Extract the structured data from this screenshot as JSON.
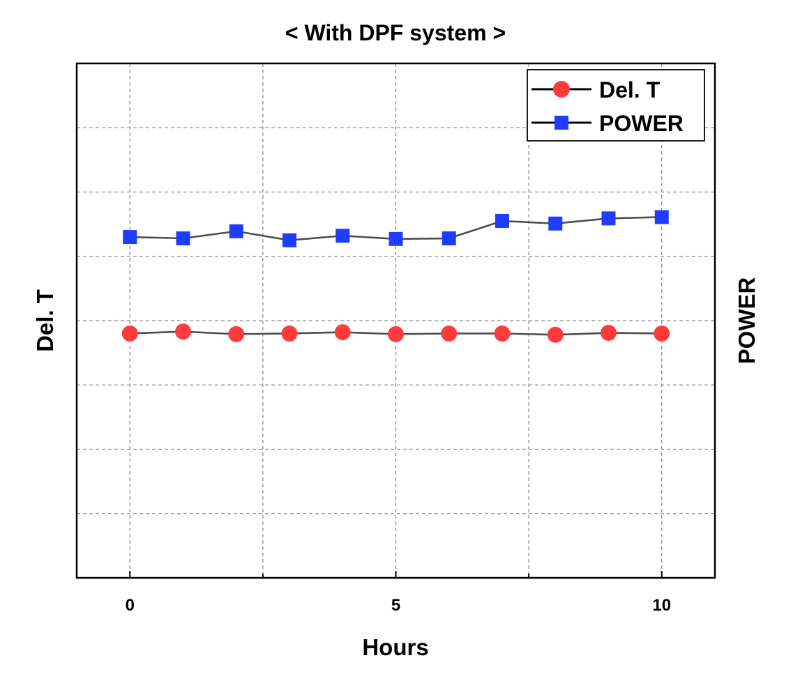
{
  "chart_data": {
    "type": "line",
    "title": "< With DPF system >",
    "xlabel": "Hours",
    "ylabel_left": "Del. T",
    "ylabel_right": "POWER",
    "xlim": [
      -1,
      11
    ],
    "ylim": [
      0,
      8
    ],
    "xticks": [
      0,
      5,
      10
    ],
    "xtick_labels": [
      "0",
      "5",
      "10"
    ],
    "minor_xticks": [
      2.5,
      7.5
    ],
    "y_grid": [
      1,
      2,
      3,
      4,
      5,
      6,
      7
    ],
    "grid": true,
    "legend_position": "top-right",
    "x": [
      0,
      1,
      2,
      3,
      4,
      5,
      6,
      7,
      8,
      9,
      10
    ],
    "series": [
      {
        "name": "Del. T",
        "marker": "circle",
        "color": "#ff3b3b",
        "values": [
          3.8,
          3.83,
          3.79,
          3.8,
          3.82,
          3.79,
          3.8,
          3.8,
          3.78,
          3.81,
          3.8
        ]
      },
      {
        "name": "POWER",
        "marker": "square",
        "color": "#1f3dff",
        "values": [
          5.3,
          5.28,
          5.39,
          5.25,
          5.32,
          5.27,
          5.28,
          5.55,
          5.51,
          5.59,
          5.61
        ]
      }
    ]
  }
}
